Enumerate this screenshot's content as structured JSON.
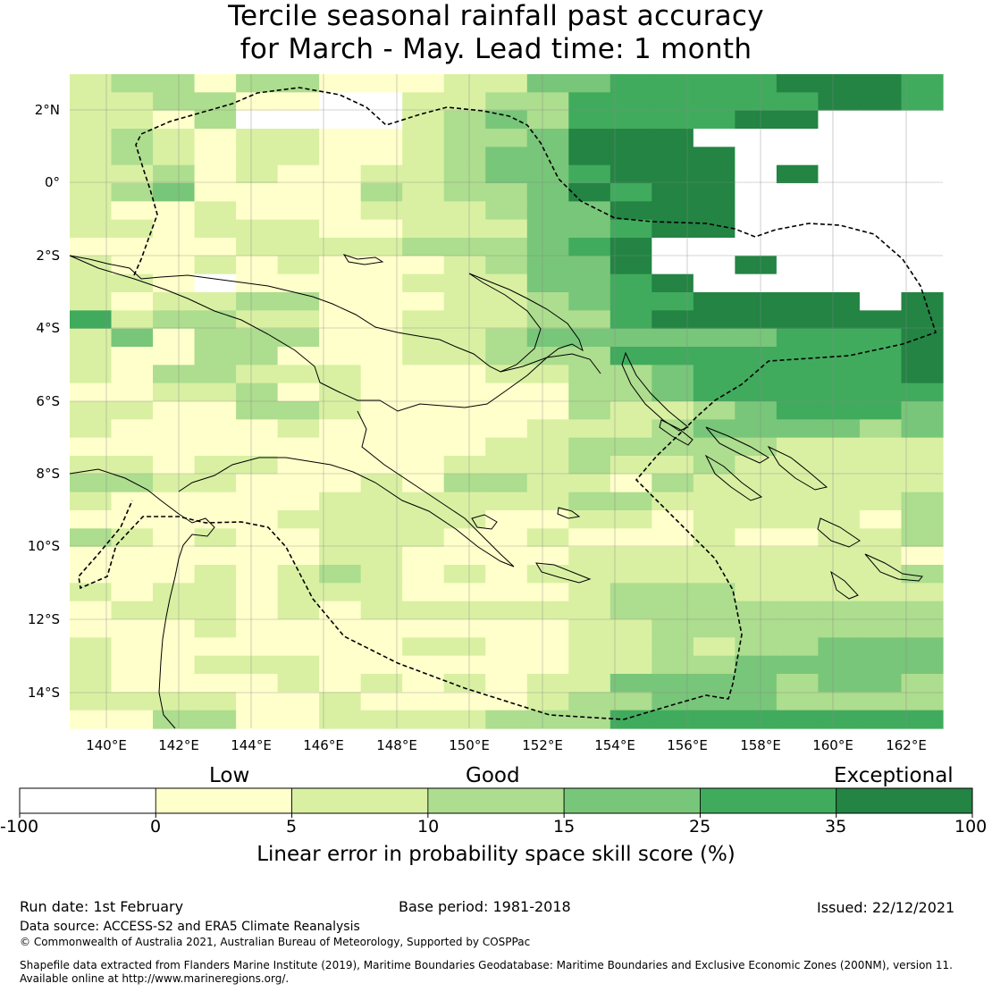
{
  "title": {
    "line1": "Tercile seasonal rainfall past accuracy",
    "line2": "for March - May. Lead time: 1 month"
  },
  "map": {
    "lon_labels": [
      "140°E",
      "142°E",
      "144°E",
      "146°E",
      "148°E",
      "150°E",
      "152°E",
      "154°E",
      "156°E",
      "158°E",
      "160°E",
      "162°E"
    ],
    "lat_labels": [
      "2°N",
      "0°",
      "2°S",
      "4°S",
      "6°S",
      "8°S",
      "10°S",
      "12°S",
      "14°S"
    ],
    "skill_grid": [
      "233133111224455556665",
      "223311002233555555665",
      "221300002343555566777",
      "232122112334666777777",
      "232122112344666677777",
      "223121122344566676777",
      "234111132334656677777",
      "211211122234466677777",
      "221222112224456677777",
      "111122223334567777777",
      "211212111234467767777",
      "221011112224456777777",
      "212233111223455666676",
      "523322112223356666666",
      "241333112234444445556",
      "211331112233355555556",
      "213322211122334555556",
      "112231211111334555555",
      "221133211111322345554",
      "211112111112223444434",
      "111111111122333332222",
      "221221111222322322222",
      "332211121332213222222",
      "211111222222332222223",
      "111112222211221222213",
      "321211222112111211223",
      "111111221111222222221",
      "111212321212222222223",
      "212212221111233322222",
      "122212122222233333333",
      "111211111111223333333",
      "211111112211223233444",
      "211222111111223344444",
      "211112121212244443443",
      "222211211112334443333",
      "113311222233355555555"
    ],
    "colors": [
      "#ffffff",
      "#ffffcc",
      "#d9f0a3",
      "#addd8e",
      "#78c679",
      "#41ab5d",
      "#238443"
    ]
  },
  "colorbar": {
    "categories": [
      "Low",
      "Good",
      "Exceptional"
    ],
    "ticks": [
      "-100",
      "0",
      "5",
      "10",
      "15",
      "25",
      "35",
      "100"
    ],
    "label": "Linear error in probability space skill score (%)"
  },
  "footer": {
    "run_date": "Run date: 1st February",
    "base_period": "Base period: 1981-2018",
    "issued": "Issued: 22/12/2021",
    "data_source": "Data source: ACCESS-S2 and ERA5 Climate Reanalysis",
    "copyright": "© Commonwealth of Australia 2021, Australian Bureau of Meteorology, Supported by COSPPac",
    "shapefile_line1": "Shapefile data extracted from Flanders Marine Institute (2019), Maritime Boundaries Geodatabase: Maritime Boundaries and Exclusive Economic Zones (200NM), version 11.",
    "shapefile_line2": "Available online at http://www.marineregions.org/."
  }
}
